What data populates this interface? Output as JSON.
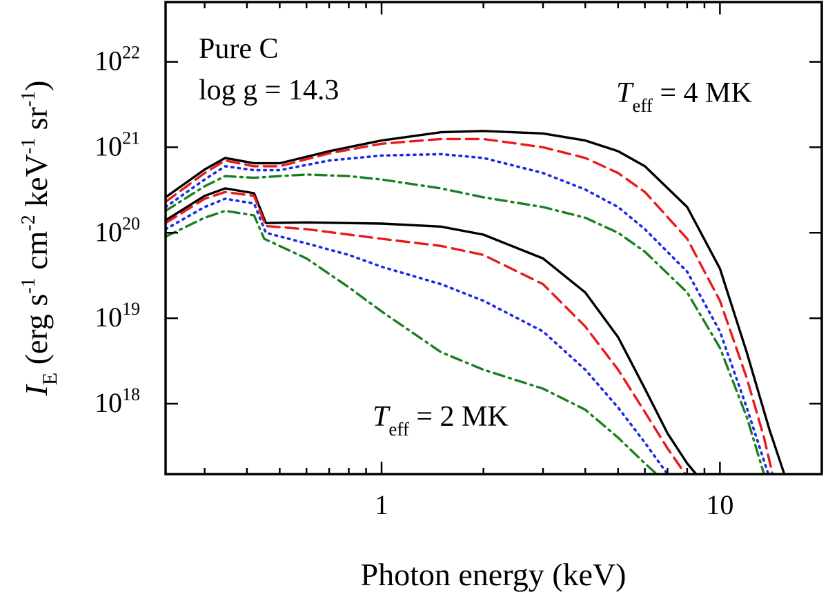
{
  "chart_data": {
    "type": "line",
    "title": "",
    "xlabel": "Photon energy (keV)",
    "ylabel": {
      "symbol": "I",
      "symbol_sub": "E",
      "units_prefix": "(erg s",
      "units_sup1": "-1",
      "units_mid1": " cm",
      "units_sup2": "-2",
      "units_mid2": " keV",
      "units_sup3": "-1",
      "units_mid3": " sr",
      "units_sup4": "-1",
      "units_suffix": ")"
    },
    "x_scale": "log",
    "y_scale": "log",
    "xlim": [
      0.23,
      20
    ],
    "ylim": [
      1.5e+17,
      5e+22
    ],
    "x_ticks": [
      {
        "value": 1,
        "label": "1"
      },
      {
        "value": 10,
        "label": "10"
      }
    ],
    "y_ticks": [
      {
        "value": 1e+18,
        "base": "10",
        "exp": "18"
      },
      {
        "value": 1e+19,
        "base": "10",
        "exp": "19"
      },
      {
        "value": 1e+20,
        "base": "10",
        "exp": "20"
      },
      {
        "value": 1e+21,
        "base": "10",
        "exp": "21"
      },
      {
        "value": 1e+22,
        "base": "10",
        "exp": "22"
      }
    ],
    "grid": false,
    "annotations": {
      "composition": "Pure C",
      "gravity": "log g = 14.3",
      "t_hot": {
        "symbol": "T",
        "sub": "eff",
        "text": " = 4 MK"
      },
      "t_cold": {
        "symbol": "T",
        "sub": "eff",
        "text": " = 2 MK"
      }
    },
    "series": [
      {
        "group": "Teff = 4 MK",
        "style": "solid",
        "color": "#000000",
        "x": [
          0.23,
          0.3,
          0.345,
          0.42,
          0.5,
          0.7,
          1.0,
          1.5,
          2.0,
          3.0,
          4.0,
          5.0,
          6.0,
          8.0,
          10.0,
          12.0,
          14.0,
          15.5
        ],
        "y": [
          2.6e+20,
          5.5e+20,
          7.5e+20,
          6.5e+20,
          6.5e+20,
          9e+20,
          1.2e+21,
          1.5e+21,
          1.55e+21,
          1.45e+21,
          1.2e+21,
          9e+20,
          6e+20,
          2e+20,
          3.8e+19,
          4e+18,
          5e+17,
          1.5e+17
        ]
      },
      {
        "group": "Teff = 4 MK",
        "style": "dashed",
        "color": "#e8191d",
        "x": [
          0.23,
          0.3,
          0.345,
          0.42,
          0.5,
          0.7,
          1.0,
          1.5,
          2.0,
          3.0,
          4.0,
          5.0,
          6.0,
          8.0,
          10.0,
          12.0,
          13.5,
          14.3
        ],
        "y": [
          2.3e+20,
          5e+20,
          7e+20,
          6e+20,
          6e+20,
          8.5e+20,
          1.1e+21,
          1.25e+21,
          1.25e+21,
          1e+21,
          7.5e+20,
          5e+20,
          3e+20,
          8.5e+19,
          1.6e+19,
          2e+18,
          4e+17,
          1.5e+17
        ]
      },
      {
        "group": "Teff = 4 MK",
        "style": "dotted",
        "color": "#1a2ae6",
        "x": [
          0.23,
          0.3,
          0.345,
          0.42,
          0.5,
          0.7,
          1.0,
          1.5,
          2.0,
          3.0,
          4.0,
          5.0,
          6.0,
          8.0,
          10.0,
          12.0,
          13.9
        ],
        "y": [
          2e+20,
          4.2e+20,
          6e+20,
          5.4e+20,
          5.4e+20,
          7e+20,
          8e+20,
          8.3e+20,
          7.5e+20,
          5e+20,
          3.2e+20,
          2e+20,
          1.1e+20,
          3.5e+19,
          7e+18,
          9e+17,
          1.5e+17
        ]
      },
      {
        "group": "Teff = 4 MK",
        "style": "dashdot",
        "color": "#17801f",
        "x": [
          0.23,
          0.3,
          0.345,
          0.42,
          0.5,
          0.6,
          0.8,
          1.0,
          1.5,
          2.0,
          3.0,
          4.0,
          5.0,
          6.0,
          8.0,
          10.0,
          12.0,
          13.5
        ],
        "y": [
          1.8e+20,
          3.5e+20,
          4.6e+20,
          4.4e+20,
          4.6e+20,
          4.8e+20,
          4.6e+20,
          4.2e+20,
          3.3e+20,
          2.6e+20,
          2e+20,
          1.5e+20,
          1e+20,
          6e+19,
          2e+19,
          4.5e+18,
          7e+17,
          1.5e+17
        ]
      },
      {
        "group": "Teff = 2 MK",
        "style": "solid",
        "color": "#000000",
        "x": [
          0.23,
          0.3,
          0.345,
          0.42,
          0.455,
          0.6,
          1.0,
          1.5,
          2.0,
          3.0,
          4.0,
          5.0,
          6.0,
          7.0,
          8.0,
          8.5
        ],
        "y": [
          1.4e+20,
          2.7e+20,
          3.3e+20,
          2.9e+20,
          1.3e+20,
          1.32e+20,
          1.28e+20,
          1.18e+20,
          9.5e+19,
          5e+19,
          2e+19,
          6e+18,
          1.5e+18,
          4.5e+17,
          2e+17,
          1.5e+17
        ]
      },
      {
        "group": "Teff = 2 MK",
        "style": "dashed",
        "color": "#e8191d",
        "x": [
          0.23,
          0.3,
          0.345,
          0.42,
          0.455,
          0.6,
          1.0,
          1.5,
          2.0,
          3.0,
          4.0,
          5.0,
          6.0,
          7.0,
          7.9
        ],
        "y": [
          1.3e+20,
          2.5e+20,
          3e+20,
          2.7e+20,
          1.2e+20,
          1.1e+20,
          8.5e+19,
          7e+19,
          5.5e+19,
          2.5e+19,
          8e+18,
          2.5e+18,
          8e+17,
          3e+17,
          1.5e+17
        ]
      },
      {
        "group": "Teff = 2 MK",
        "style": "dotted",
        "color": "#1a2ae6",
        "x": [
          0.23,
          0.3,
          0.345,
          0.42,
          0.455,
          0.6,
          0.8,
          1.0,
          1.5,
          2.0,
          3.0,
          4.0,
          5.0,
          6.0,
          7.0
        ],
        "y": [
          1.1e+20,
          2e+20,
          2.5e+20,
          2.2e+20,
          1e+20,
          7.5e+19,
          5.5e+19,
          4e+19,
          2.5e+19,
          1.6e+19,
          7e+18,
          2.5e+18,
          9e+17,
          3.5e+17,
          1.5e+17
        ]
      },
      {
        "group": "Teff = 2 MK",
        "style": "dashdot",
        "color": "#17801f",
        "x": [
          0.23,
          0.3,
          0.345,
          0.42,
          0.45,
          0.6,
          0.8,
          1.0,
          1.5,
          2.0,
          3.0,
          4.0,
          5.0,
          6.0,
          6.5
        ],
        "y": [
          9e+19,
          1.5e+20,
          1.8e+20,
          1.6e+20,
          8.5e+19,
          5e+19,
          2.3e+19,
          1.2e+19,
          4e+18,
          2.5e+18,
          1.5e+18,
          8.5e+17,
          4e+17,
          2e+17,
          1.5e+17
        ]
      }
    ]
  }
}
